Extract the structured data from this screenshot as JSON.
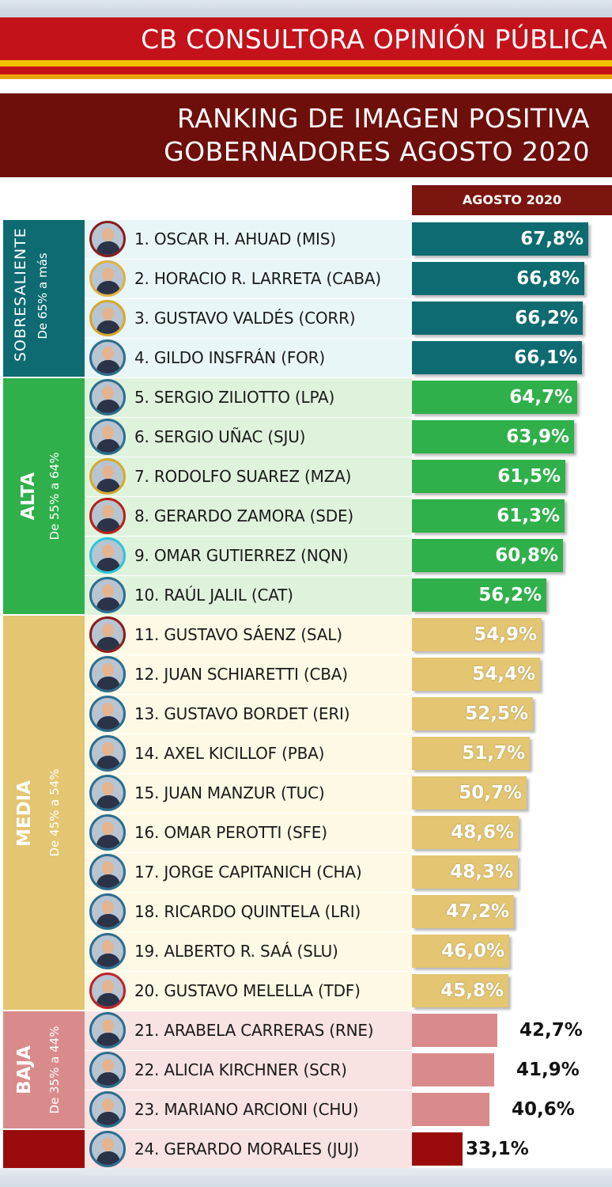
{
  "header": {
    "brand": "CB CONSULTORA OPINIÓN PÚBLICA",
    "title_line1": "RANKING DE IMAGEN POSITIVA",
    "title_line2": "GOBERNADORES AGOSTO 2020"
  },
  "colors": {
    "sobresaliente": "#0e6b72",
    "alta": "#2fb04a",
    "media": "#e3c572",
    "baja": "#d98b8b",
    "last": "#9a0c0c",
    "sobresaliente_bg": "#e9f6f8",
    "alta_bg": "#dff3dc",
    "media_bg": "#fdf9e4",
    "baja_bg": "#f8e2e2"
  },
  "bands": [
    {
      "name": "SOBRESALIENTE",
      "range": "De 65% a más"
    },
    {
      "name": "ALTA",
      "range": "De 55% a 64%"
    },
    {
      "name": "MEDIA",
      "range": "De 45% a 54%"
    },
    {
      "name": "BAJA",
      "range": "De 35% a 44%"
    }
  ],
  "chart_data": {
    "type": "bar",
    "orientation": "horizontal",
    "series_label": "AGOSTO 2020",
    "categories": [
      "1. OSCAR H. AHUAD  (MIS)",
      "2. HORACIO R. LARRETA (CABA)",
      "3. GUSTAVO VALDÉS  (CORR)",
      "4. GILDO INSFRÁN (FOR)",
      "5. SERGIO ZILIOTTO (LPA)",
      "6. SERGIO UÑAC (SJU)",
      "7. RODOLFO SUAREZ (MZA)",
      "8. GERARDO ZAMORA (SDE)",
      "9. OMAR GUTIERREZ (NQN)",
      "10. RAÚL JALIL (CAT)",
      "11. GUSTAVO SÁENZ (SAL)",
      "12. JUAN SCHIARETTI (CBA)",
      "13. GUSTAVO BORDET (ERI)",
      "14. AXEL KICILLOF (PBA)",
      "15. JUAN MANZUR (TUC)",
      "16. OMAR PEROTTI (SFE)",
      "17.  JORGE CAPITANICH (CHA)",
      "18. RICARDO QUINTELA (LRI)",
      "19. ALBERTO R. SAÁ (SLU)",
      "20. GUSTAVO MELELLA (TDF)",
      "21. ARABELA CARRERAS (RNE)",
      "22. ALICIA KIRCHNER (SCR)",
      "23. MARIANO ARCIONI (CHU)",
      "24. GERARDO MORALES (JUJ)"
    ],
    "values": [
      67.8,
      66.8,
      66.2,
      66.1,
      64.7,
      63.9,
      61.5,
      61.3,
      60.8,
      56.2,
      54.9,
      54.4,
      52.5,
      51.7,
      50.7,
      48.6,
      48.3,
      47.2,
      46.0,
      45.8,
      42.7,
      41.9,
      40.6,
      33.1
    ],
    "labels": [
      "67,8%",
      "66,8%",
      "66,2%",
      "66,1%",
      "64,7%",
      "63,9%",
      "61,5%",
      "61,3%",
      "60,8%",
      "56,2%",
      "54,9%",
      "54,4%",
      "52,5%",
      "51,7%",
      "50,7%",
      "48,6%",
      "48,3%",
      "47,2%",
      "46,0%",
      "45,8%",
      "42,7%",
      "41,9%",
      "40,6%",
      "33,1%"
    ],
    "groups": [
      "SOBRESALIENTE",
      "SOBRESALIENTE",
      "SOBRESALIENTE",
      "SOBRESALIENTE",
      "ALTA",
      "ALTA",
      "ALTA",
      "ALTA",
      "ALTA",
      "ALTA",
      "MEDIA",
      "MEDIA",
      "MEDIA",
      "MEDIA",
      "MEDIA",
      "MEDIA",
      "MEDIA",
      "MEDIA",
      "MEDIA",
      "MEDIA",
      "BAJA",
      "BAJA",
      "BAJA",
      "LAST"
    ],
    "title": "RANKING DE IMAGEN POSITIVA GOBERNADORES AGOSTO 2020",
    "grid": false
  }
}
